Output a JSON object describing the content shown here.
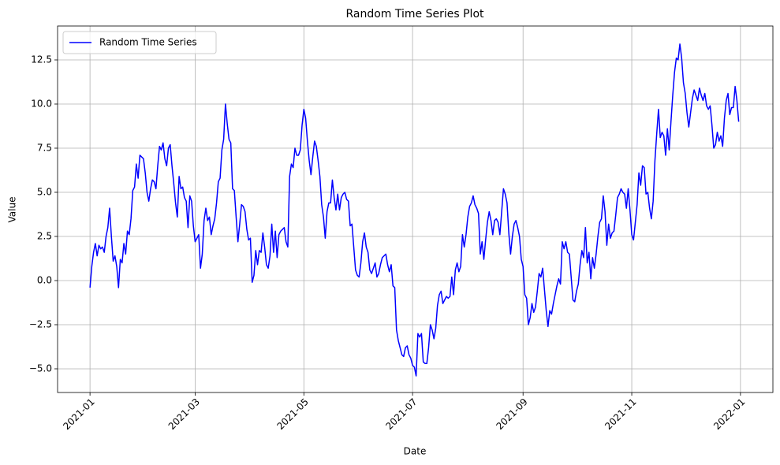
{
  "chart_data": {
    "type": "line",
    "title": "Random Time Series Plot",
    "x_label": "Date",
    "y_label": "Value",
    "grid": true,
    "legend": "upper left",
    "xlim": [
      -18.2,
      383.2
    ],
    "xticks": [
      {
        "value": 0,
        "label": "2021-01"
      },
      {
        "value": 59,
        "label": "2021-03"
      },
      {
        "value": 120,
        "label": "2021-05"
      },
      {
        "value": 181,
        "label": "2021-07"
      },
      {
        "value": 243,
        "label": "2021-09"
      },
      {
        "value": 304,
        "label": "2021-11"
      },
      {
        "value": 365,
        "label": "2022-01"
      }
    ],
    "ylim": [
      -6.34,
      14.42
    ],
    "yticks": [
      {
        "value": -5,
        "label": "−5.0"
      },
      {
        "value": -2.5,
        "label": "−2.5"
      },
      {
        "value": 0,
        "label": "0.0"
      },
      {
        "value": 2.5,
        "label": "2.5"
      },
      {
        "value": 5,
        "label": "5.0"
      },
      {
        "value": 7.5,
        "label": "7.5"
      },
      {
        "value": 10,
        "label": "10.0"
      },
      {
        "value": 12.5,
        "label": "12.5"
      }
    ],
    "x": [
      0,
      1,
      2,
      3,
      4,
      5,
      6,
      7,
      8,
      9,
      10,
      11,
      12,
      13,
      14,
      15,
      16,
      17,
      18,
      19,
      20,
      21,
      22,
      23,
      24,
      25,
      26,
      27,
      28,
      29,
      30,
      31,
      32,
      33,
      34,
      35,
      36,
      37,
      38,
      39,
      40,
      41,
      42,
      43,
      44,
      45,
      46,
      47,
      48,
      49,
      50,
      51,
      52,
      53,
      54,
      55,
      56,
      57,
      58,
      59,
      60,
      61,
      62,
      63,
      64,
      65,
      66,
      67,
      68,
      69,
      70,
      71,
      72,
      73,
      74,
      75,
      76,
      77,
      78,
      79,
      80,
      81,
      82,
      83,
      84,
      85,
      86,
      87,
      88,
      89,
      90,
      91,
      92,
      93,
      94,
      95,
      96,
      97,
      98,
      99,
      100,
      101,
      102,
      103,
      104,
      105,
      106,
      107,
      108,
      109,
      110,
      111,
      112,
      113,
      114,
      115,
      116,
      117,
      118,
      119,
      120,
      121,
      122,
      123,
      124,
      125,
      126,
      127,
      128,
      129,
      130,
      131,
      132,
      133,
      134,
      135,
      136,
      137,
      138,
      139,
      140,
      141,
      142,
      143,
      144,
      145,
      146,
      147,
      148,
      149,
      150,
      151,
      152,
      153,
      154,
      155,
      156,
      157,
      158,
      159,
      160,
      161,
      162,
      163,
      164,
      165,
      166,
      167,
      168,
      169,
      170,
      171,
      172,
      173,
      174,
      175,
      176,
      177,
      178,
      179,
      180,
      181,
      182,
      183,
      184,
      185,
      186,
      187,
      188,
      189,
      190,
      191,
      192,
      193,
      194,
      195,
      196,
      197,
      198,
      199,
      200,
      201,
      202,
      203,
      204,
      205,
      206,
      207,
      208,
      209,
      210,
      211,
      212,
      213,
      214,
      215,
      216,
      217,
      218,
      219,
      220,
      221,
      222,
      223,
      224,
      225,
      226,
      227,
      228,
      229,
      230,
      231,
      232,
      233,
      234,
      235,
      236,
      237,
      238,
      239,
      240,
      241,
      242,
      243,
      244,
      245,
      246,
      247,
      248,
      249,
      250,
      251,
      252,
      253,
      254,
      255,
      256,
      257,
      258,
      259,
      260,
      261,
      262,
      263,
      264,
      265,
      266,
      267,
      268,
      269,
      270,
      271,
      272,
      273,
      274,
      275,
      276,
      277,
      278,
      279,
      280,
      281,
      282,
      283,
      284,
      285,
      286,
      287,
      288,
      289,
      290,
      291,
      292,
      293,
      294,
      295,
      296,
      297,
      298,
      299,
      300,
      301,
      302,
      303,
      304,
      305,
      306,
      307,
      308,
      309,
      310,
      311,
      312,
      313,
      314,
      315,
      316,
      317,
      318,
      319,
      320,
      321,
      322,
      323,
      324,
      325,
      326,
      327,
      328,
      329,
      330,
      331,
      332,
      333,
      334,
      335,
      336,
      337,
      338,
      339,
      340,
      341,
      342,
      343,
      344,
      345,
      346,
      347,
      348,
      349,
      350,
      351,
      352,
      353,
      354,
      355,
      356,
      357,
      358,
      359,
      360,
      361,
      362,
      363,
      364
    ],
    "series": [
      {
        "name": "Random Time Series",
        "color": "#0000ff",
        "values": [
          -0.4,
          0.8,
          1.6,
          2.1,
          1.4,
          2.0,
          1.8,
          1.9,
          1.6,
          2.5,
          3.0,
          4.1,
          2.5,
          1.1,
          1.4,
          0.8,
          -0.4,
          1.2,
          1.0,
          2.1,
          1.5,
          2.8,
          2.6,
          3.5,
          5.1,
          5.3,
          6.6,
          5.8,
          7.1,
          7.0,
          6.9,
          6.1,
          5.0,
          4.5,
          5.2,
          5.7,
          5.6,
          5.2,
          6.5,
          7.6,
          7.4,
          7.8,
          6.9,
          6.5,
          7.5,
          7.7,
          6.5,
          5.5,
          4.4,
          3.6,
          5.9,
          5.2,
          5.3,
          4.7,
          4.5,
          3.0,
          4.8,
          4.5,
          3.1,
          2.2,
          2.4,
          2.6,
          0.7,
          1.5,
          3.4,
          4.1,
          3.4,
          3.6,
          2.6,
          3.1,
          3.5,
          4.4,
          5.6,
          5.8,
          7.4,
          8.0,
          10.0,
          8.9,
          8.0,
          7.8,
          5.2,
          5.1,
          3.6,
          2.2,
          3.2,
          4.3,
          4.2,
          3.9,
          2.9,
          2.3,
          2.4,
          -0.1,
          0.3,
          1.7,
          0.9,
          1.7,
          1.6,
          2.7,
          1.9,
          0.9,
          0.7,
          1.4,
          3.2,
          1.6,
          2.8,
          1.3,
          2.6,
          2.8,
          2.9,
          3.0,
          2.2,
          1.9,
          5.9,
          6.6,
          6.4,
          7.5,
          7.1,
          7.1,
          7.4,
          8.8,
          9.7,
          9.2,
          7.9,
          6.8,
          6.0,
          7.0,
          7.9,
          7.6,
          6.8,
          5.9,
          4.3,
          3.6,
          2.4,
          3.9,
          4.4,
          4.4,
          5.7,
          4.7,
          4.0,
          4.9,
          4.0,
          4.7,
          4.9,
          5.0,
          4.6,
          4.5,
          3.1,
          3.2,
          1.9,
          0.6,
          0.3,
          0.2,
          1.0,
          2.2,
          2.7,
          1.9,
          1.6,
          0.6,
          0.4,
          0.7,
          1.0,
          0.2,
          0.4,
          0.9,
          1.3,
          1.4,
          1.5,
          0.9,
          0.5,
          0.9,
          -0.3,
          -0.4,
          -2.8,
          -3.4,
          -3.8,
          -4.2,
          -4.3,
          -3.8,
          -3.7,
          -4.2,
          -4.4,
          -4.8,
          -4.9,
          -5.4,
          -3.0,
          -3.2,
          -3.0,
          -4.6,
          -4.7,
          -4.7,
          -3.8,
          -2.5,
          -2.8,
          -3.3,
          -2.7,
          -1.4,
          -0.8,
          -0.6,
          -1.3,
          -1.1,
          -0.9,
          -1.0,
          -0.9,
          0.2,
          -0.8,
          0.6,
          1.0,
          0.5,
          0.8,
          2.6,
          1.9,
          2.6,
          3.6,
          4.2,
          4.4,
          4.8,
          4.3,
          4.1,
          3.8,
          1.5,
          2.2,
          1.2,
          2.3,
          3.3,
          3.9,
          3.4,
          2.6,
          3.4,
          3.5,
          3.3,
          2.6,
          3.9,
          5.2,
          4.9,
          4.4,
          2.7,
          1.5,
          2.5,
          3.2,
          3.4,
          3.0,
          2.5,
          1.2,
          0.8,
          -0.8,
          -1.0,
          -2.5,
          -2.1,
          -1.3,
          -1.8,
          -1.5,
          -0.6,
          0.4,
          0.2,
          0.7,
          -0.5,
          -1.7,
          -2.6,
          -1.7,
          -1.9,
          -1.3,
          -0.8,
          -0.3,
          0.1,
          -0.2,
          2.2,
          1.8,
          2.2,
          1.6,
          1.5,
          0.2,
          -1.1,
          -1.2,
          -0.6,
          -0.2,
          0.9,
          1.7,
          1.3,
          3.0,
          1.0,
          1.6,
          0.1,
          1.3,
          0.7,
          1.5,
          2.5,
          3.3,
          3.5,
          4.8,
          3.9,
          2.0,
          3.2,
          2.4,
          2.7,
          2.8,
          3.7,
          4.7,
          4.9,
          5.2,
          5.0,
          4.9,
          4.1,
          5.2,
          4.0,
          2.6,
          2.3,
          3.3,
          4.3,
          6.1,
          5.4,
          6.5,
          6.4,
          4.9,
          5.0,
          4.1,
          3.5,
          4.5,
          6.8,
          8.3,
          9.7,
          8.1,
          8.4,
          8.2,
          7.1,
          8.6,
          7.4,
          9.0,
          10.5,
          11.8,
          12.6,
          12.5,
          13.4,
          12.6,
          11.2,
          10.6,
          9.5,
          8.7,
          9.5,
          10.3,
          10.8,
          10.5,
          10.2,
          10.9,
          10.5,
          10.2,
          10.6,
          9.9,
          9.7,
          9.9,
          8.8,
          7.5,
          7.7,
          8.4,
          7.9,
          8.2,
          7.6,
          9.2,
          10.2,
          10.6,
          9.4,
          9.8,
          9.8,
          11.0,
          10.2,
          9.0
        ]
      }
    ]
  }
}
